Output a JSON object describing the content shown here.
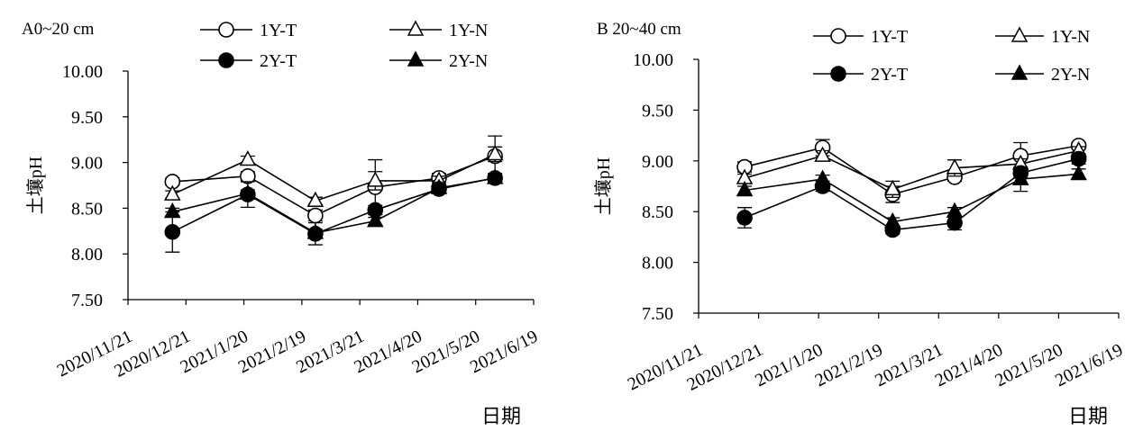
{
  "chart_data": [
    {
      "type": "line",
      "title": "A0~20 cm",
      "xlabel": "日期",
      "ylabel": "土壤pH",
      "ylim": [
        7.5,
        10.0
      ],
      "yticks": [
        "7.50",
        "8.00",
        "8.50",
        "9.00",
        "9.50",
        "10.00"
      ],
      "x_ticks": [
        "2020/11/21",
        "2020/12/21",
        "2021/1/20",
        "2021/2/19",
        "2021/3/21",
        "2021/4/20",
        "2021/5/20",
        "2021/6/19"
      ],
      "x": [
        "2020/12/14",
        "2021/1/22",
        "2021/2/26",
        "2021/3/29",
        "2021/5/1",
        "2021/5/30"
      ],
      "series": [
        {
          "name": "1Y-T",
          "marker": "circle-open",
          "values": [
            8.79,
            8.85,
            8.42,
            8.73,
            8.83,
            9.07
          ],
          "errors": [
            0.04,
            0.05,
            0.06,
            0.3,
            0.05,
            0.22
          ]
        },
        {
          "name": "1Y-N",
          "marker": "triangle-open",
          "values": [
            8.65,
            9.03,
            8.58,
            8.8,
            8.8,
            9.09
          ],
          "errors": [
            0.04,
            0.04,
            0.04,
            0.1,
            0.05,
            0.08
          ]
        },
        {
          "name": "2Y-T",
          "marker": "circle-filled",
          "values": [
            8.24,
            8.65,
            8.22,
            8.48,
            8.71,
            8.83
          ],
          "errors": [
            0.22,
            0.14,
            0.12,
            0.05,
            0.04,
            0.05
          ]
        },
        {
          "name": "2Y-N",
          "marker": "triangle-filled",
          "values": [
            8.46,
            8.66,
            8.23,
            8.36,
            8.72,
            8.83
          ],
          "errors": [
            0.04,
            0.04,
            0.04,
            0.04,
            0.04,
            0.04
          ]
        }
      ]
    },
    {
      "type": "line",
      "title": "B 20~40 cm",
      "xlabel": "日期",
      "ylabel": "土壤pH",
      "ylim": [
        7.5,
        10.0
      ],
      "yticks": [
        "7.50",
        "8.00",
        "8.50",
        "9.00",
        "9.50",
        "10.00"
      ],
      "x_ticks": [
        "2020/11/21",
        "2020/12/21",
        "2021/1/20",
        "2021/2/19",
        "2021/3/21",
        "2021/4/20",
        "2021/5/20",
        "2021/6/19"
      ],
      "x": [
        "2020/12/14",
        "2021/1/22",
        "2021/2/26",
        "2021/3/29",
        "2021/5/1",
        "2021/5/30"
      ],
      "series": [
        {
          "name": "1Y-T",
          "marker": "circle-open",
          "values": [
            8.94,
            9.13,
            8.67,
            8.84,
            9.05,
            9.15
          ],
          "errors": [
            0.05,
            0.08,
            0.08,
            0.04,
            0.13,
            0.03
          ]
        },
        {
          "name": "1Y-N",
          "marker": "triangle-open",
          "values": [
            8.83,
            9.05,
            8.72,
            8.93,
            8.97,
            9.1
          ],
          "errors": [
            0.04,
            0.05,
            0.08,
            0.08,
            0.05,
            0.04
          ]
        },
        {
          "name": "2Y-T",
          "marker": "circle-filled",
          "values": [
            8.44,
            8.75,
            8.32,
            8.39,
            8.88,
            9.02
          ],
          "errors": [
            0.1,
            0.05,
            0.04,
            0.07,
            0.05,
            0.05
          ]
        },
        {
          "name": "2Y-N",
          "marker": "triangle-filled",
          "values": [
            8.71,
            8.82,
            8.4,
            8.5,
            8.82,
            8.87
          ],
          "errors": [
            0.04,
            0.04,
            0.04,
            0.04,
            0.12,
            0.05
          ]
        }
      ]
    }
  ]
}
